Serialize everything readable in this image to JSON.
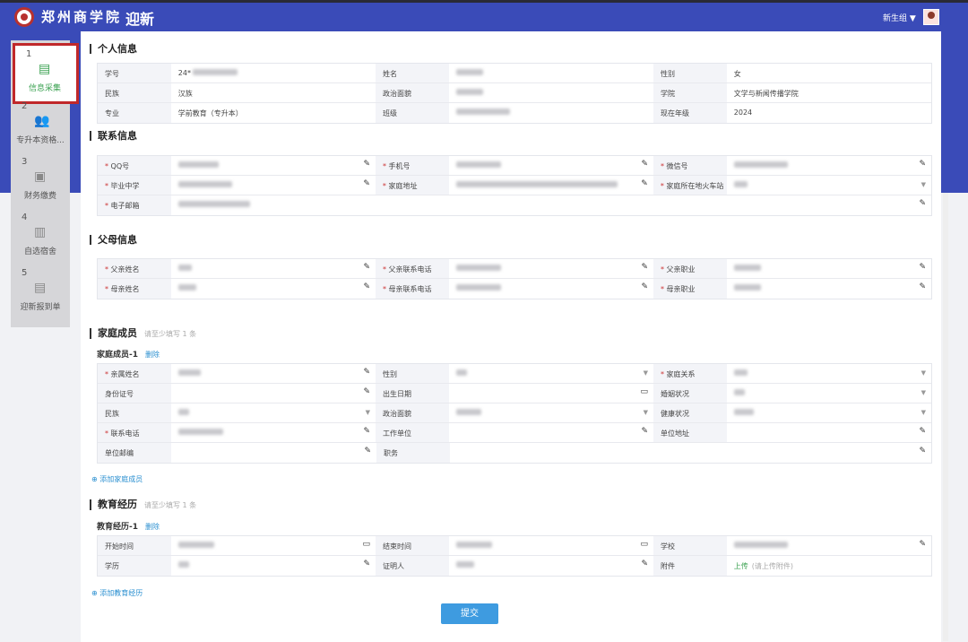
{
  "header": {
    "school_name": "郑州商学院",
    "app_title": "迎新",
    "user_group": "新生组"
  },
  "sidebar": {
    "steps": [
      {
        "num": "1",
        "label": "信息采集",
        "icon": "calendar-icon",
        "active": true
      },
      {
        "num": "2",
        "label": "专升本资格...",
        "icon": "users-icon"
      },
      {
        "num": "3",
        "label": "财务缴费",
        "icon": "money-icon"
      },
      {
        "num": "4",
        "label": "自选宿舍",
        "icon": "building-icon"
      },
      {
        "num": "5",
        "label": "迎新报到单",
        "icon": "calendar-icon"
      }
    ]
  },
  "personal": {
    "title": "个人信息",
    "rows": [
      [
        {
          "label": "学号",
          "value": "24*"
        },
        {
          "label": "姓名",
          "blur": 30
        },
        {
          "label": "性别",
          "value": "女"
        }
      ],
      [
        {
          "label": "民族",
          "value": "汉族"
        },
        {
          "label": "政治面貌",
          "blur": 30
        },
        {
          "label": "学院",
          "value": "文学与新闻传播学院"
        }
      ],
      [
        {
          "label": "专业",
          "value": "学前教育（专升本）"
        },
        {
          "label": "班级",
          "blur": 60
        },
        {
          "label": "现在年级",
          "value": "2024"
        }
      ]
    ]
  },
  "contact": {
    "title": "联系信息",
    "rows": [
      [
        {
          "label": "QQ号",
          "req": true,
          "blur": 45,
          "tool": "edit"
        },
        {
          "label": "手机号",
          "req": true,
          "blur": 50,
          "tool": "edit"
        },
        {
          "label": "微信号",
          "req": true,
          "blur": 60,
          "tool": "edit"
        }
      ],
      [
        {
          "label": "毕业中学",
          "req": true,
          "blur": 60,
          "tool": "edit"
        },
        {
          "label": "家庭地址",
          "req": true,
          "blur": 180,
          "tool": "edit"
        },
        {
          "label": "家庭所在地火车站",
          "req": true,
          "blur": 15,
          "tool": "dropdown"
        }
      ],
      [
        {
          "label": "电子邮箱",
          "req": true,
          "blur": 80,
          "tool": "edit",
          "wide": true
        }
      ]
    ]
  },
  "parents": {
    "title": "父母信息",
    "rows": [
      [
        {
          "label": "父亲姓名",
          "req": true,
          "blur": 15,
          "tool": "edit"
        },
        {
          "label": "父亲联系电话",
          "req": true,
          "blur": 50,
          "tool": "edit"
        },
        {
          "label": "父亲职业",
          "req": true,
          "blur": 30,
          "tool": "edit"
        }
      ],
      [
        {
          "label": "母亲姓名",
          "req": true,
          "blur": 20,
          "tool": "edit"
        },
        {
          "label": "母亲联系电话",
          "req": true,
          "blur": 50,
          "tool": "edit"
        },
        {
          "label": "母亲职业",
          "req": true,
          "blur": 30,
          "tool": "edit"
        }
      ]
    ]
  },
  "family": {
    "title": "家庭成员",
    "hint": "请至少填写 1 条",
    "member_title": "家庭成员-1",
    "delete": "删除",
    "add": "添加家庭成员",
    "rows": [
      [
        {
          "label": "亲属姓名",
          "req": true,
          "blur": 25,
          "tool": "edit"
        },
        {
          "label": "性别",
          "blur": 12,
          "tool": "dropdown"
        },
        {
          "label": "家庭关系",
          "req": true,
          "blur": 15,
          "tool": "dropdown"
        }
      ],
      [
        {
          "label": "身份证号",
          "tool": "edit"
        },
        {
          "label": "出生日期",
          "tool": "date"
        },
        {
          "label": "婚姻状况",
          "blur": 12,
          "tool": "dropdown"
        }
      ],
      [
        {
          "label": "民族",
          "blur": 12,
          "tool": "dropdown"
        },
        {
          "label": "政治面貌",
          "blur": 28,
          "tool": "dropdown"
        },
        {
          "label": "健康状况",
          "blur": 22,
          "tool": "dropdown"
        }
      ],
      [
        {
          "label": "联系电话",
          "req": true,
          "blur": 50,
          "tool": "edit"
        },
        {
          "label": "工作单位",
          "tool": "edit"
        },
        {
          "label": "单位地址",
          "tool": "edit"
        }
      ],
      [
        {
          "label": "单位邮编",
          "tool": "edit"
        },
        {
          "label": "职务",
          "tool": "edit",
          "wide": true
        }
      ]
    ]
  },
  "education": {
    "title": "教育经历",
    "hint": "请至少填写 1 条",
    "record_title": "教育经历-1",
    "delete": "删除",
    "add": "添加教育经历",
    "rows": [
      [
        {
          "label": "开始时间",
          "blur": 40,
          "tool": "date"
        },
        {
          "label": "结束时间",
          "blur": 40,
          "tool": "date"
        },
        {
          "label": "学校",
          "blur": 60,
          "tool": "edit"
        }
      ],
      [
        {
          "label": "学历",
          "blur": 12,
          "tool": "edit"
        },
        {
          "label": "证明人",
          "blur": 20,
          "tool": "edit"
        },
        {
          "label": "附件",
          "upload": "上传",
          "upload_hint": "(请上传附件)"
        }
      ]
    ]
  },
  "submit_label": "提交",
  "colors": {
    "header": "#3a4bb8",
    "active_step": "#3aa150",
    "highlight_border": "#c0282a",
    "submit": "#3e9be0",
    "link": "#2a8fd0"
  }
}
